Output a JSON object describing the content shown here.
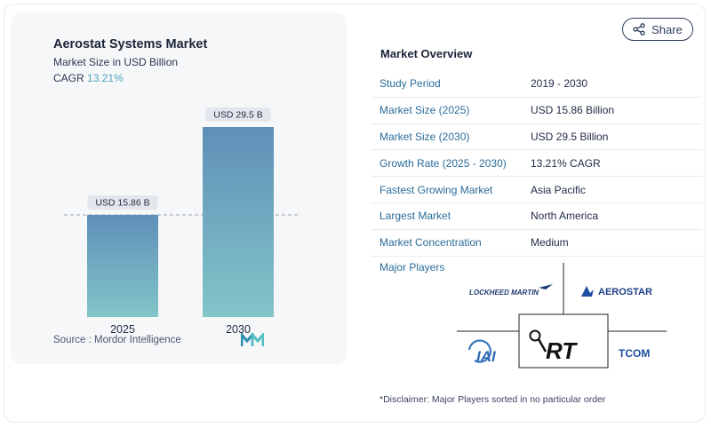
{
  "card": {
    "title": "Aerostat Systems Market",
    "subtitle": "Market Size in USD Billion",
    "cagr_label": "CAGR",
    "cagr_value": "13.21%",
    "source_label": "Source :",
    "source_value": "Mordor Intelligence"
  },
  "chart_data": {
    "type": "bar",
    "title": "Aerostat Systems Market",
    "subtitle": "Market Size in USD Billion",
    "categories": [
      "2025",
      "2030"
    ],
    "values": [
      15.86,
      29.5
    ],
    "data_labels": [
      "USD 15.86 B",
      "USD 29.5 B"
    ],
    "ylim": [
      0,
      30.5
    ],
    "grid": false,
    "reference_line_at": 15.86,
    "bar_gradient": [
      "#5f8fb8",
      "#82c5c8"
    ]
  },
  "share": {
    "label": "Share",
    "icon": "share-icon"
  },
  "overview": {
    "title": "Market Overview",
    "rows": [
      {
        "key": "Study Period",
        "value": "2019 - 2030"
      },
      {
        "key": "Market Size (2025)",
        "value": "USD 15.86 Billion"
      },
      {
        "key": "Market Size (2030)",
        "value": "USD 29.5 Billion"
      },
      {
        "key": "Growth Rate (2025 - 2030)",
        "value": "13.21% CAGR"
      },
      {
        "key": "Fastest Growing Market",
        "value": "Asia Pacific"
      },
      {
        "key": "Largest Market",
        "value": "North America"
      },
      {
        "key": "Market Concentration",
        "value": "Medium"
      }
    ]
  },
  "players": {
    "label": "Major Players",
    "logos": [
      "LOCKHEED MARTIN",
      "AEROSTAR",
      "IAI",
      "RT",
      "TCOM"
    ]
  },
  "disclaimer": "*Disclaimer: Major Players sorted in no particular order",
  "colors": {
    "accent": "#2b6c9a",
    "cagr": "#4aa5b8",
    "card_bg": "#f6f7f9"
  }
}
